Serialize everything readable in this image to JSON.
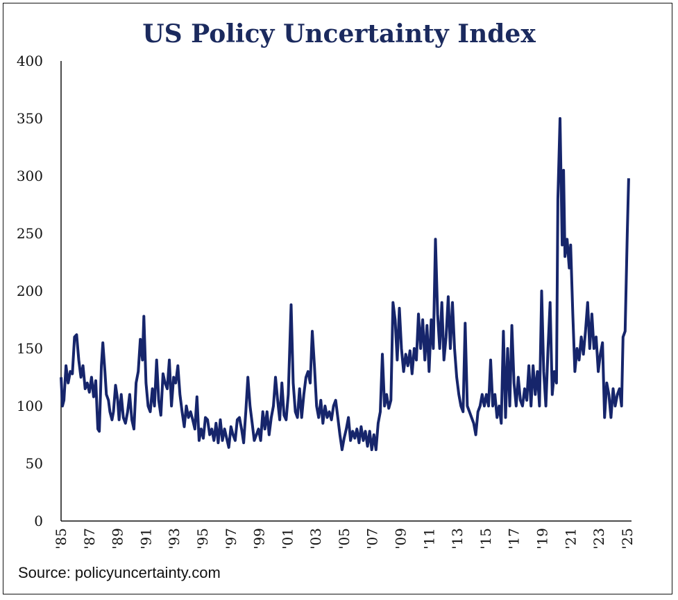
{
  "chart_data": {
    "type": "line",
    "title": "US Policy Uncertainty Index",
    "source": "Source: policyuncertainty.com",
    "ylim": [
      0,
      400
    ],
    "xlim": [
      1985,
      2025.3
    ],
    "yticks": [
      "0",
      "50",
      "100",
      "150",
      "200",
      "250",
      "300",
      "350",
      "400"
    ],
    "xticks": [
      {
        "label": "'85",
        "year": 1985
      },
      {
        "label": "'87",
        "year": 1987
      },
      {
        "label": "'89",
        "year": 1989
      },
      {
        "label": "'91",
        "year": 1991
      },
      {
        "label": "'93",
        "year": 1993
      },
      {
        "label": "'95",
        "year": 1995
      },
      {
        "label": "'97",
        "year": 1997
      },
      {
        "label": "'99",
        "year": 1999
      },
      {
        "label": "'01",
        "year": 2001
      },
      {
        "label": "'03",
        "year": 2003
      },
      {
        "label": "'05",
        "year": 2005
      },
      {
        "label": "'07",
        "year": 2007
      },
      {
        "label": "'09",
        "year": 2009
      },
      {
        "label": "'11",
        "year": 2011
      },
      {
        "label": "'13",
        "year": 2013
      },
      {
        "label": "'15",
        "year": 2015
      },
      {
        "label": "'17",
        "year": 2017
      },
      {
        "label": "'19",
        "year": 2019
      },
      {
        "label": "'21",
        "year": 2021
      },
      {
        "label": "'23",
        "year": 2023
      },
      {
        "label": "'25",
        "year": 2025
      }
    ],
    "grid": false,
    "color": "#16256b",
    "series": [
      {
        "values": [
          [
            1985.0,
            125
          ],
          [
            1985.1,
            100
          ],
          [
            1985.2,
            105
          ],
          [
            1985.35,
            135
          ],
          [
            1985.5,
            120
          ],
          [
            1985.65,
            130
          ],
          [
            1985.8,
            128
          ],
          [
            1985.95,
            160
          ],
          [
            1986.1,
            162
          ],
          [
            1986.25,
            140
          ],
          [
            1986.4,
            125
          ],
          [
            1986.55,
            135
          ],
          [
            1986.7,
            115
          ],
          [
            1986.85,
            120
          ],
          [
            1987.0,
            112
          ],
          [
            1987.15,
            125
          ],
          [
            1987.3,
            108
          ],
          [
            1987.45,
            122
          ],
          [
            1987.6,
            80
          ],
          [
            1987.7,
            78
          ],
          [
            1987.85,
            135
          ],
          [
            1987.95,
            155
          ],
          [
            1988.1,
            130
          ],
          [
            1988.2,
            110
          ],
          [
            1988.35,
            105
          ],
          [
            1988.45,
            95
          ],
          [
            1988.6,
            88
          ],
          [
            1988.7,
            95
          ],
          [
            1988.85,
            118
          ],
          [
            1989.0,
            105
          ],
          [
            1989.1,
            88
          ],
          [
            1989.25,
            110
          ],
          [
            1989.4,
            90
          ],
          [
            1989.55,
            85
          ],
          [
            1989.7,
            95
          ],
          [
            1989.85,
            110
          ],
          [
            1990.0,
            88
          ],
          [
            1990.15,
            80
          ],
          [
            1990.3,
            120
          ],
          [
            1990.45,
            130
          ],
          [
            1990.6,
            158
          ],
          [
            1990.75,
            140
          ],
          [
            1990.85,
            178
          ],
          [
            1991.0,
            120
          ],
          [
            1991.15,
            100
          ],
          [
            1991.3,
            95
          ],
          [
            1991.45,
            115
          ],
          [
            1991.6,
            100
          ],
          [
            1991.75,
            140
          ],
          [
            1991.9,
            105
          ],
          [
            1992.05,
            92
          ],
          [
            1992.2,
            128
          ],
          [
            1992.35,
            120
          ],
          [
            1992.5,
            115
          ],
          [
            1992.65,
            140
          ],
          [
            1992.8,
            100
          ],
          [
            1992.95,
            125
          ],
          [
            1993.1,
            120
          ],
          [
            1993.25,
            135
          ],
          [
            1993.4,
            110
          ],
          [
            1993.55,
            95
          ],
          [
            1993.7,
            82
          ],
          [
            1993.85,
            100
          ],
          [
            1994.0,
            90
          ],
          [
            1994.15,
            95
          ],
          [
            1994.3,
            88
          ],
          [
            1994.45,
            80
          ],
          [
            1994.6,
            108
          ],
          [
            1994.75,
            70
          ],
          [
            1994.9,
            80
          ],
          [
            1995.05,
            72
          ],
          [
            1995.2,
            90
          ],
          [
            1995.35,
            88
          ],
          [
            1995.5,
            75
          ],
          [
            1995.65,
            80
          ],
          [
            1995.8,
            70
          ],
          [
            1995.95,
            85
          ],
          [
            1996.1,
            68
          ],
          [
            1996.25,
            88
          ],
          [
            1996.4,
            70
          ],
          [
            1996.55,
            80
          ],
          [
            1996.7,
            72
          ],
          [
            1996.85,
            64
          ],
          [
            1997.0,
            82
          ],
          [
            1997.15,
            75
          ],
          [
            1997.3,
            70
          ],
          [
            1997.45,
            88
          ],
          [
            1997.6,
            90
          ],
          [
            1997.75,
            80
          ],
          [
            1997.9,
            68
          ],
          [
            1998.05,
            95
          ],
          [
            1998.2,
            125
          ],
          [
            1998.35,
            100
          ],
          [
            1998.5,
            85
          ],
          [
            1998.65,
            70
          ],
          [
            1998.8,
            75
          ],
          [
            1998.95,
            80
          ],
          [
            1999.1,
            70
          ],
          [
            1999.25,
            95
          ],
          [
            1999.4,
            80
          ],
          [
            1999.55,
            95
          ],
          [
            1999.7,
            75
          ],
          [
            1999.85,
            90
          ],
          [
            2000.0,
            100
          ],
          [
            2000.15,
            125
          ],
          [
            2000.3,
            105
          ],
          [
            2000.45,
            88
          ],
          [
            2000.6,
            120
          ],
          [
            2000.75,
            92
          ],
          [
            2000.9,
            88
          ],
          [
            2001.05,
            110
          ],
          [
            2001.25,
            188
          ],
          [
            2001.4,
            120
          ],
          [
            2001.55,
            95
          ],
          [
            2001.7,
            90
          ],
          [
            2001.85,
            115
          ],
          [
            2002.0,
            90
          ],
          [
            2002.15,
            110
          ],
          [
            2002.3,
            125
          ],
          [
            2002.45,
            130
          ],
          [
            2002.6,
            120
          ],
          [
            2002.75,
            165
          ],
          [
            2002.9,
            135
          ],
          [
            2003.05,
            100
          ],
          [
            2003.2,
            90
          ],
          [
            2003.35,
            105
          ],
          [
            2003.5,
            85
          ],
          [
            2003.65,
            100
          ],
          [
            2003.8,
            90
          ],
          [
            2003.95,
            95
          ],
          [
            2004.1,
            88
          ],
          [
            2004.25,
            100
          ],
          [
            2004.4,
            105
          ],
          [
            2004.55,
            90
          ],
          [
            2004.7,
            75
          ],
          [
            2004.85,
            62
          ],
          [
            2005.0,
            72
          ],
          [
            2005.15,
            80
          ],
          [
            2005.3,
            90
          ],
          [
            2005.45,
            70
          ],
          [
            2005.6,
            78
          ],
          [
            2005.75,
            72
          ],
          [
            2005.9,
            80
          ],
          [
            2006.05,
            68
          ],
          [
            2006.2,
            82
          ],
          [
            2006.35,
            70
          ],
          [
            2006.5,
            78
          ],
          [
            2006.65,
            65
          ],
          [
            2006.8,
            78
          ],
          [
            2006.95,
            62
          ],
          [
            2007.1,
            75
          ],
          [
            2007.25,
            62
          ],
          [
            2007.4,
            85
          ],
          [
            2007.55,
            95
          ],
          [
            2007.7,
            145
          ],
          [
            2007.85,
            100
          ],
          [
            2008.0,
            110
          ],
          [
            2008.15,
            98
          ],
          [
            2008.3,
            105
          ],
          [
            2008.45,
            190
          ],
          [
            2008.6,
            175
          ],
          [
            2008.75,
            140
          ],
          [
            2008.9,
            185
          ],
          [
            2009.05,
            150
          ],
          [
            2009.2,
            130
          ],
          [
            2009.35,
            145
          ],
          [
            2009.5,
            135
          ],
          [
            2009.65,
            148
          ],
          [
            2009.8,
            128
          ],
          [
            2009.95,
            150
          ],
          [
            2010.1,
            140
          ],
          [
            2010.25,
            180
          ],
          [
            2010.4,
            150
          ],
          [
            2010.55,
            175
          ],
          [
            2010.7,
            140
          ],
          [
            2010.85,
            170
          ],
          [
            2011.0,
            130
          ],
          [
            2011.15,
            175
          ],
          [
            2011.3,
            150
          ],
          [
            2011.45,
            245
          ],
          [
            2011.6,
            180
          ],
          [
            2011.75,
            150
          ],
          [
            2011.9,
            190
          ],
          [
            2012.05,
            140
          ],
          [
            2012.2,
            160
          ],
          [
            2012.35,
            195
          ],
          [
            2012.5,
            150
          ],
          [
            2012.65,
            190
          ],
          [
            2012.8,
            150
          ],
          [
            2012.95,
            125
          ],
          [
            2013.1,
            110
          ],
          [
            2013.25,
            100
          ],
          [
            2013.4,
            95
          ],
          [
            2013.55,
            172
          ],
          [
            2013.7,
            100
          ],
          [
            2013.85,
            95
          ],
          [
            2014.0,
            90
          ],
          [
            2014.15,
            85
          ],
          [
            2014.3,
            75
          ],
          [
            2014.45,
            95
          ],
          [
            2014.6,
            100
          ],
          [
            2014.75,
            110
          ],
          [
            2014.9,
            100
          ],
          [
            2015.05,
            110
          ],
          [
            2015.2,
            100
          ],
          [
            2015.35,
            140
          ],
          [
            2015.5,
            100
          ],
          [
            2015.65,
            110
          ],
          [
            2015.8,
            90
          ],
          [
            2015.95,
            100
          ],
          [
            2016.1,
            85
          ],
          [
            2016.25,
            165
          ],
          [
            2016.4,
            90
          ],
          [
            2016.55,
            150
          ],
          [
            2016.7,
            100
          ],
          [
            2016.85,
            170
          ],
          [
            2017.0,
            120
          ],
          [
            2017.15,
            100
          ],
          [
            2017.3,
            125
          ],
          [
            2017.45,
            105
          ],
          [
            2017.6,
            100
          ],
          [
            2017.75,
            115
          ],
          [
            2017.9,
            105
          ],
          [
            2018.05,
            135
          ],
          [
            2018.2,
            100
          ],
          [
            2018.35,
            135
          ],
          [
            2018.5,
            110
          ],
          [
            2018.65,
            130
          ],
          [
            2018.8,
            100
          ],
          [
            2018.95,
            200
          ],
          [
            2019.1,
            130
          ],
          [
            2019.25,
            100
          ],
          [
            2019.4,
            150
          ],
          [
            2019.55,
            190
          ],
          [
            2019.7,
            110
          ],
          [
            2019.85,
            130
          ],
          [
            2020.0,
            120
          ],
          [
            2020.1,
            280
          ],
          [
            2020.25,
            350
          ],
          [
            2020.4,
            240
          ],
          [
            2020.5,
            305
          ],
          [
            2020.6,
            230
          ],
          [
            2020.75,
            245
          ],
          [
            2020.9,
            220
          ],
          [
            2021.0,
            240
          ],
          [
            2021.15,
            180
          ],
          [
            2021.3,
            130
          ],
          [
            2021.45,
            150
          ],
          [
            2021.6,
            140
          ],
          [
            2021.75,
            160
          ],
          [
            2021.9,
            145
          ],
          [
            2022.05,
            165
          ],
          [
            2022.2,
            190
          ],
          [
            2022.35,
            150
          ],
          [
            2022.5,
            180
          ],
          [
            2022.65,
            150
          ],
          [
            2022.8,
            160
          ],
          [
            2022.95,
            130
          ],
          [
            2023.1,
            145
          ],
          [
            2023.25,
            155
          ],
          [
            2023.4,
            90
          ],
          [
            2023.55,
            120
          ],
          [
            2023.7,
            110
          ],
          [
            2023.85,
            90
          ],
          [
            2024.0,
            115
          ],
          [
            2024.15,
            100
          ],
          [
            2024.3,
            110
          ],
          [
            2024.45,
            115
          ],
          [
            2024.6,
            100
          ],
          [
            2024.7,
            160
          ],
          [
            2024.85,
            165
          ],
          [
            2025.0,
            250
          ],
          [
            2025.1,
            298
          ]
        ]
      }
    ]
  }
}
